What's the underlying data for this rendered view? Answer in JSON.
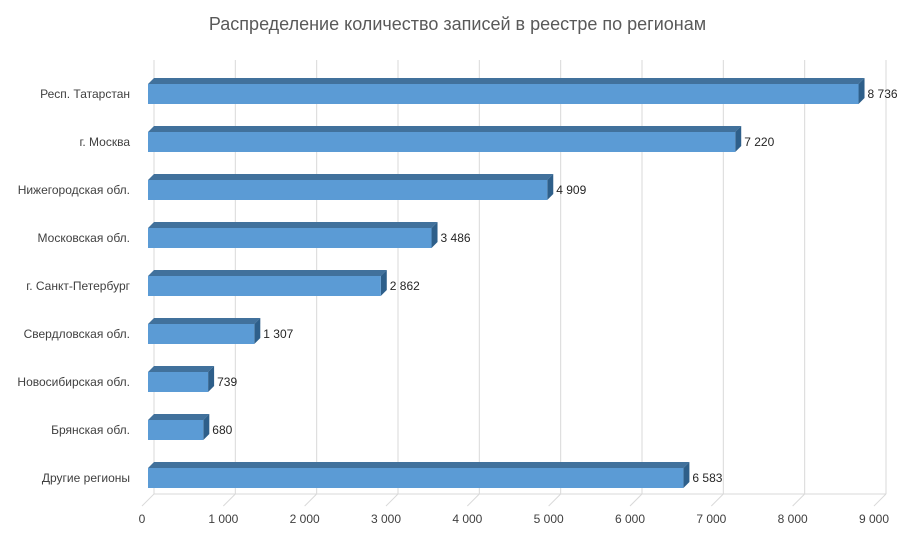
{
  "chart_data": {
    "type": "bar",
    "orientation": "horizontal",
    "title": "Распределение количество записей в реестре по регионам",
    "categories": [
      "Респ. Татарстан",
      "г. Москва",
      "Нижегородская обл.",
      "Московская обл.",
      "г. Санкт-Петербург",
      "Свердловская обл.",
      "Новосибирская обл.",
      "Брянская обл.",
      "Другие регионы"
    ],
    "values": [
      8736,
      7220,
      4909,
      3486,
      2862,
      1307,
      739,
      680,
      6583
    ],
    "data_labels": [
      "8 736",
      "7 220",
      "4 909",
      "3 486",
      "2 862",
      "1 307",
      "739",
      "680",
      "6 583"
    ],
    "xlim": [
      0,
      9000
    ],
    "x_ticks": [
      0,
      1000,
      2000,
      3000,
      4000,
      5000,
      6000,
      7000,
      8000,
      9000
    ],
    "x_tick_labels": [
      "0",
      "1 000",
      "2 000",
      "3 000",
      "4 000",
      "5 000",
      "6 000",
      "7 000",
      "8 000",
      "9 000"
    ],
    "grid": true,
    "legend": "none",
    "colors": {
      "bar_front": "#5b9bd5",
      "bar_top": "#41719c",
      "bar_side": "#2e5f8a",
      "grid": "#d9d9d9",
      "title": "#595959"
    }
  }
}
